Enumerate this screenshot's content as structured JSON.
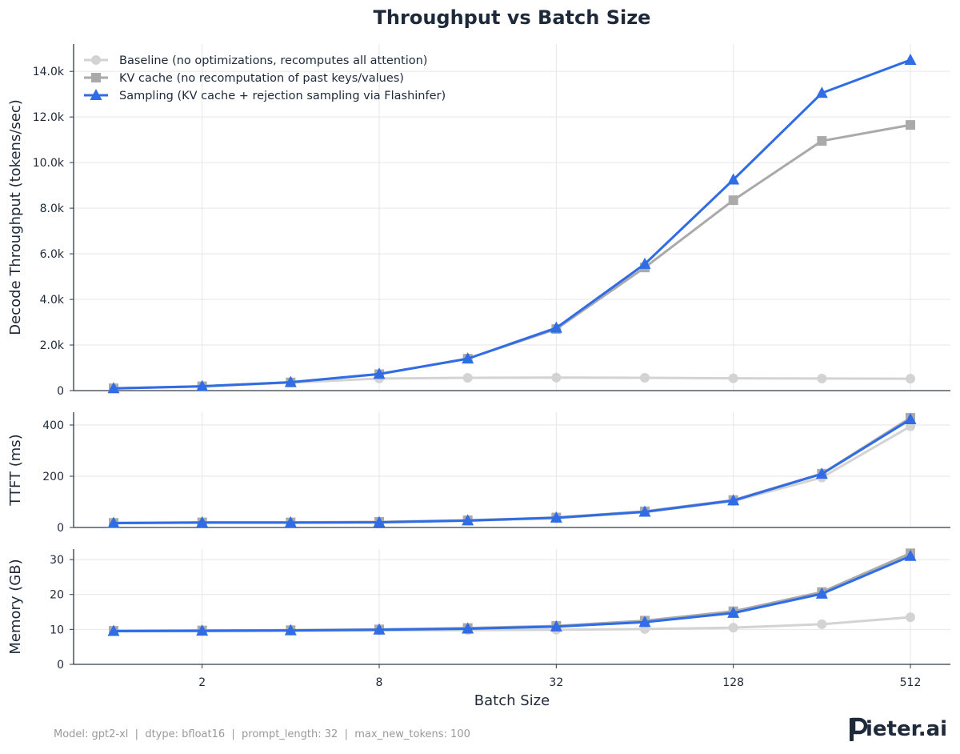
{
  "chart_data": {
    "title": "Throughput vs Batch Size",
    "xlabel": "Batch Size",
    "x_scale": "log2",
    "x_ticks": [
      2,
      8,
      32,
      128,
      512
    ],
    "x_tick_labels": [
      "2",
      "8",
      "32",
      "128",
      "512"
    ],
    "categories": [
      1,
      2,
      4,
      8,
      16,
      32,
      64,
      128,
      256,
      512
    ],
    "colors": {
      "baseline": "#d3d3d3",
      "kv_cache": "#aaaaaa",
      "sampling": "#2f6ce5"
    },
    "legend": [
      {
        "key": "baseline",
        "label": "Baseline (no optimizations, recomputes all attention)",
        "marker": "circle"
      },
      {
        "key": "kv_cache",
        "label": "KV cache (no recomputation of past keys/values)",
        "marker": "square"
      },
      {
        "key": "sampling",
        "label": "Sampling (KV cache + rejection sampling via Flashinfer)",
        "marker": "triangle"
      }
    ],
    "legend_position": "upper-left",
    "panels": [
      {
        "type": "line",
        "ylabel": "Decode Throughput (tokens/sec)",
        "ylim": [
          0,
          15200
        ],
        "y_ticks": [
          0,
          2000,
          4000,
          6000,
          8000,
          10000,
          12000,
          14000
        ],
        "y_tick_labels": [
          "0",
          "2.0k",
          "4.0k",
          "6.0k",
          "8.0k",
          "10.0k",
          "12.0k",
          "14.0k"
        ],
        "series": [
          {
            "key": "baseline",
            "name": "Baseline (no optimizations, recomputes all attention)",
            "values": [
              90,
              180,
              350,
              530,
              560,
              570,
              560,
              540,
              530,
              520
            ]
          },
          {
            "key": "kv_cache",
            "name": "KV cache (no recomputation of past keys/values)",
            "values": [
              100,
              190,
              360,
              720,
              1400,
              2700,
              5400,
              8350,
              10950,
              11650
            ]
          },
          {
            "key": "sampling",
            "name": "Sampling (KV cache + rejection sampling via Flashinfer)",
            "values": [
              95,
              190,
              370,
              730,
              1400,
              2750,
              5550,
              9250,
              13050,
              14500
            ]
          }
        ]
      },
      {
        "type": "line",
        "ylabel": "TTFT (ms)",
        "ylim": [
          0,
          450
        ],
        "y_ticks": [
          0,
          200,
          400
        ],
        "y_tick_labels": [
          "0",
          "200",
          "400"
        ],
        "series": [
          {
            "key": "baseline",
            "name": "Baseline",
            "values": [
              18,
              19,
              19,
              21,
              26,
              36,
              60,
              103,
              195,
              395
            ]
          },
          {
            "key": "kv_cache",
            "name": "KV cache",
            "values": [
              18,
              20,
              20,
              22,
              28,
              39,
              63,
              107,
              210,
              428
            ]
          },
          {
            "key": "sampling",
            "name": "Sampling",
            "values": [
              17,
              19,
              19,
              20,
              27,
              38,
              61,
              105,
              209,
              422
            ]
          }
        ]
      },
      {
        "type": "line",
        "ylabel": "Memory (GB)",
        "ylim": [
          0,
          33
        ],
        "y_ticks": [
          0,
          10,
          20,
          30
        ],
        "y_tick_labels": [
          "0",
          "10",
          "20",
          "30"
        ],
        "series": [
          {
            "key": "baseline",
            "name": "Baseline",
            "values": [
              9.5,
              9.5,
              9.6,
              9.7,
              9.8,
              9.9,
              10.1,
              10.5,
              11.5,
              13.5
            ]
          },
          {
            "key": "kv_cache",
            "name": "KV cache",
            "values": [
              9.6,
              9.7,
              9.8,
              10.0,
              10.4,
              11.0,
              12.5,
              15.2,
              20.7,
              31.8
            ]
          },
          {
            "key": "sampling",
            "name": "Sampling",
            "values": [
              9.5,
              9.6,
              9.7,
              9.9,
              10.2,
              10.8,
              12.1,
              14.7,
              20.2,
              31.0
            ]
          }
        ]
      }
    ]
  },
  "footer": {
    "metadata": "Model: gpt2-xl  |  dtype: bfloat16  |  prompt_length: 32  |  max_new_tokens: 100",
    "logo_text": "Pieter.ai",
    "logo_rest": "ieter.ai"
  }
}
